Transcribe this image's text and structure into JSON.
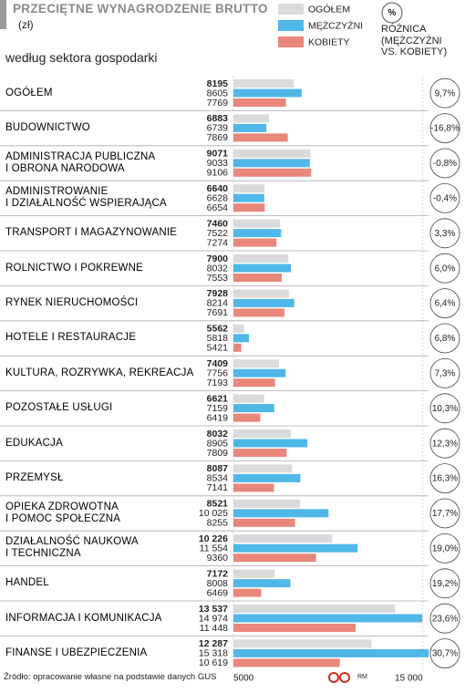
{
  "chart_data": {
    "type": "bar",
    "orientation": "horizontal",
    "title": "PRZECIĘTNE WYNAGRODZENIE BRUTTO",
    "subtitle": "(zł)",
    "group_label": "według sektora gospodarki",
    "source": "Źródło: opracowanie własne na podstawie danych GUS",
    "credit": "RM",
    "categories": [
      "OGÓŁEM",
      "BUDOWNICTWO",
      "ADMINISTRACJA PUBLICZNA\nI OBRONA NARODOWA",
      "ADMINISTROWANIE\nI DZIAŁALNOŚĆ WSPIERAJĄCA",
      "TRANSPORT I MAGAZYNOWANIE",
      "ROLNICTWO I POKREWNE",
      "RYNEK NIERUCHOMOŚCI",
      "HOTELE I RESTAURACJE",
      "KULTURA, ROZRYWKA, REKREACJA",
      "POZOSTAŁE USŁUGI",
      "EDUKACJA",
      "PRZEMYSŁ",
      "OPIEKA ZDROWOTNA\nI POMOC SPOŁECZNA",
      "DZIAŁALNOŚĆ NAUKOWA\nI TECHNICZNA",
      "HANDEL",
      "INFORMACJA I KOMUNIKACJA",
      "FINANSE I UBEZPIECZENIA"
    ],
    "series": [
      {
        "name": "OGÓŁEM",
        "color": "#d9dadb",
        "values": [
          8195,
          6883,
          9071,
          6640,
          7460,
          7900,
          7928,
          5562,
          7409,
          6621,
          8032,
          8087,
          8521,
          10226,
          7172,
          13537,
          12287
        ],
        "value_labels": [
          "8195",
          "6883",
          "9071",
          "6640",
          "7460",
          "7900",
          "7928",
          "5562",
          "7409",
          "6621",
          "8032",
          "8087",
          "8521",
          "10 226",
          "7172",
          "13 537",
          "12 287"
        ]
      },
      {
        "name": "MĘŻCZYŹNI",
        "color": "#4fb8e8",
        "values": [
          8605,
          6739,
          9033,
          6628,
          7522,
          8032,
          8214,
          5818,
          7756,
          7159,
          8905,
          8534,
          10025,
          11554,
          8008,
          14974,
          15318
        ],
        "value_labels": [
          "8605",
          "6739",
          "9033",
          "6628",
          "7522",
          "8032",
          "8214",
          "5818",
          "7756",
          "7159",
          "8905",
          "8534",
          "10 025",
          "11 554",
          "8008",
          "14 974",
          "15 318"
        ]
      },
      {
        "name": "KOBIETY",
        "color": "#e8877a",
        "values": [
          7769,
          7869,
          9106,
          6654,
          7274,
          7553,
          7691,
          5421,
          7193,
          6419,
          7809,
          7141,
          8255,
          9360,
          6469,
          11448,
          10619
        ],
        "value_labels": [
          "7769",
          "7869",
          "9106",
          "6654",
          "7274",
          "7553",
          "7691",
          "5421",
          "7193",
          "6419",
          "7809",
          "7141",
          "8255",
          "9360",
          "6469",
          "11 448",
          "10 619"
        ]
      }
    ],
    "difference": {
      "symbol": "%",
      "title": "RÓŻNICA\n(MĘŻCZYŹNI\nVS. KOBIETY)",
      "values": [
        9.7,
        -16.8,
        -0.8,
        -0.4,
        3.3,
        6.0,
        6.4,
        6.8,
        7.3,
        10.3,
        12.3,
        16.3,
        17.7,
        19.0,
        19.2,
        23.6,
        30.7
      ],
      "value_labels": [
        "9,7%",
        "-16,8%",
        "-0,8%",
        "-0,4%",
        "3,3%",
        "6,0%",
        "6,4%",
        "6,8%",
        "7,3%",
        "10,3%",
        "12,3%",
        "16,3%",
        "17,7%",
        "19,0%",
        "19,2%",
        "23,6%",
        "30,7%"
      ]
    },
    "xlim": [
      5000,
      15400
    ],
    "xticks": [
      5000,
      {
        "value": 15000,
        "label": "15 000"
      }
    ],
    "grid": true
  }
}
